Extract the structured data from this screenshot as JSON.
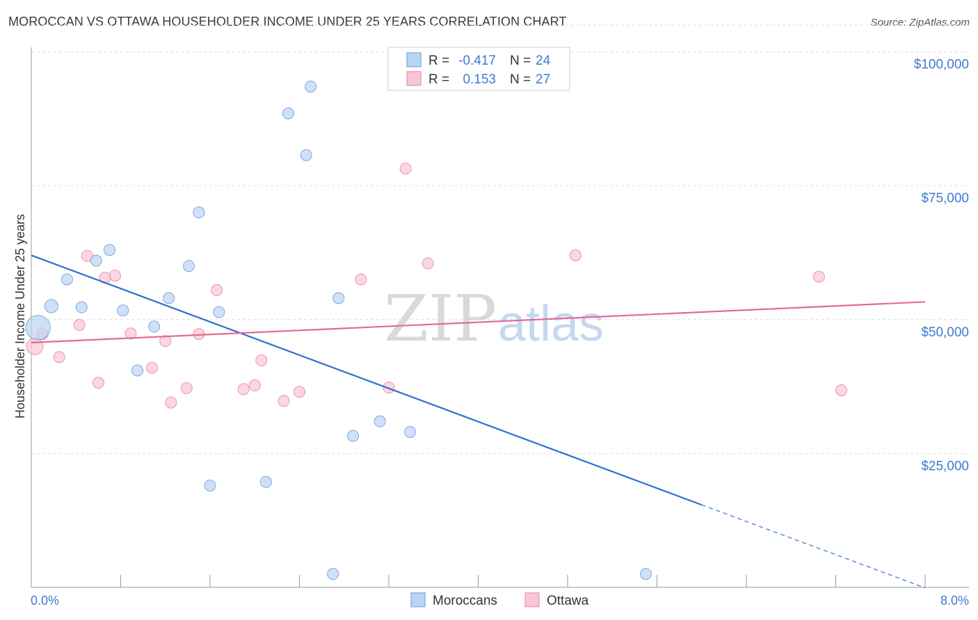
{
  "title": "MOROCCAN VS OTTAWA HOUSEHOLDER INCOME UNDER 25 YEARS CORRELATION CHART",
  "source": "Source: ZipAtlas.com",
  "watermark": {
    "zip": "ZIP",
    "atlas": "atlas"
  },
  "colors": {
    "moroccans_fill": "#bcd4f3",
    "moroccans_stroke": "#7aa7e0",
    "moroccans_line": "#2f6fd1",
    "ottawa_fill": "#f8c6d4",
    "ottawa_stroke": "#ec92ad",
    "ottawa_line": "#e06b93",
    "tick_text": "#3d7ad0",
    "grid": "#dddddd"
  },
  "legend": {
    "rows": [
      {
        "r_label": "R =",
        "r_value": "-0.417",
        "n_label": "N =",
        "n_value": "24"
      },
      {
        "r_label": "R =",
        "r_value": "0.153",
        "n_label": "N =",
        "n_value": "27"
      }
    ]
  },
  "bottom_legend": [
    "Moroccans",
    "Ottawa"
  ],
  "chart_data": {
    "type": "scatter",
    "title": "MOROCCAN VS OTTAWA HOUSEHOLDER INCOME UNDER 25 YEARS CORRELATION CHART",
    "xlabel": "",
    "ylabel": "Householder Income Under 25 years",
    "xlim": [
      0,
      8
    ],
    "ylim": [
      0,
      105000
    ],
    "x_tick_labels": [
      "0.0%",
      "8.0%"
    ],
    "y_ticks": [
      25000,
      50000,
      75000,
      100000
    ],
    "y_tick_labels": [
      "$25,000",
      "$50,000",
      "$75,000",
      "$100,000"
    ],
    "grid": true,
    "legend_position": "top-center",
    "series": [
      {
        "name": "Moroccans",
        "points": [
          [
            0.06,
            48500,
            2.2
          ],
          [
            0.18,
            52500,
            1.2
          ],
          [
            0.32,
            57500,
            1
          ],
          [
            0.45,
            52300,
            1
          ],
          [
            0.58,
            61000,
            1
          ],
          [
            0.7,
            63000,
            1
          ],
          [
            0.82,
            51700,
            1
          ],
          [
            0.95,
            40500,
            1
          ],
          [
            1.1,
            48700,
            1
          ],
          [
            1.23,
            54000,
            1
          ],
          [
            1.41,
            60000,
            1
          ],
          [
            1.5,
            70000,
            1
          ],
          [
            1.6,
            19000,
            1
          ],
          [
            1.68,
            51400,
            1
          ],
          [
            2.1,
            19700,
            1
          ],
          [
            2.3,
            88500,
            1
          ],
          [
            2.46,
            80700,
            1
          ],
          [
            2.5,
            93500,
            1
          ],
          [
            2.7,
            2500,
            1
          ],
          [
            2.75,
            54000,
            1
          ],
          [
            2.88,
            28300,
            1
          ],
          [
            3.12,
            31000,
            1
          ],
          [
            3.39,
            29000,
            1
          ],
          [
            5.5,
            2500,
            1
          ]
        ],
        "trend": {
          "x0": 0.0,
          "y0": 62000,
          "x1": 6.0,
          "y1": 15400,
          "dash_to_x": 8.0,
          "dash_to_y": -100
        }
      },
      {
        "name": "Ottawa",
        "points": [
          [
            0.03,
            45000,
            1.5
          ],
          [
            0.1,
            47300,
            1
          ],
          [
            0.25,
            43000,
            1
          ],
          [
            0.43,
            49000,
            1
          ],
          [
            0.5,
            61900,
            1
          ],
          [
            0.6,
            38200,
            1
          ],
          [
            0.66,
            57800,
            1
          ],
          [
            0.75,
            58200,
            1
          ],
          [
            0.89,
            47400,
            1
          ],
          [
            1.08,
            41000,
            1
          ],
          [
            1.2,
            46000,
            1
          ],
          [
            1.25,
            34500,
            1
          ],
          [
            1.39,
            37200,
            1
          ],
          [
            1.5,
            47300,
            1
          ],
          [
            1.66,
            55500,
            1
          ],
          [
            1.9,
            37000,
            1
          ],
          [
            2.0,
            37700,
            1
          ],
          [
            2.06,
            42400,
            1
          ],
          [
            2.26,
            34800,
            1
          ],
          [
            2.4,
            36500,
            1
          ],
          [
            2.95,
            57500,
            1
          ],
          [
            3.2,
            37300,
            1
          ],
          [
            3.35,
            78200,
            1
          ],
          [
            3.55,
            60500,
            1
          ],
          [
            4.87,
            62000,
            1
          ],
          [
            7.05,
            58000,
            1
          ],
          [
            7.25,
            36800,
            1
          ]
        ],
        "trend": {
          "x0": 0.0,
          "y0": 45700,
          "x1": 8.0,
          "y1": 53300
        }
      }
    ]
  }
}
